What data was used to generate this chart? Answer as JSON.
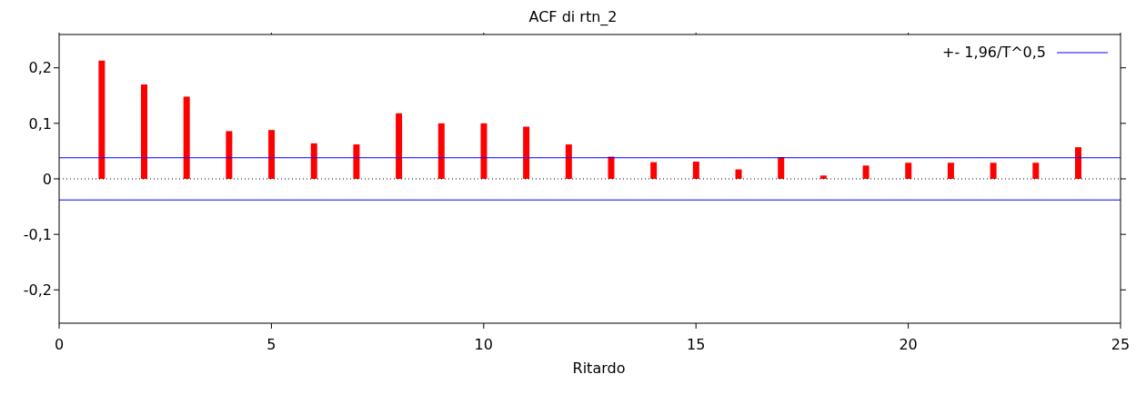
{
  "chart_data": {
    "type": "bar",
    "title": "ACF di rtn_2",
    "xlabel": "Ritardo",
    "x": [
      1,
      2,
      3,
      4,
      5,
      6,
      7,
      8,
      9,
      10,
      11,
      12,
      13,
      14,
      15,
      16,
      17,
      18,
      19,
      20,
      21,
      22,
      23,
      24
    ],
    "values": [
      0.213,
      0.17,
      0.148,
      0.086,
      0.088,
      0.064,
      0.062,
      0.118,
      0.1,
      0.1,
      0.094,
      0.062,
      0.04,
      0.03,
      0.031,
      0.017,
      0.039,
      0.006,
      0.024,
      0.029,
      0.029,
      0.029,
      0.029,
      0.057
    ],
    "color": "#ff0000",
    "xlim": [
      0,
      25
    ],
    "xticks": [
      0,
      5,
      10,
      15,
      20,
      25
    ],
    "ylim": [
      -0.26,
      0.26
    ],
    "yticks": [
      {
        "value": -0.2,
        "label": "-0,2"
      },
      {
        "value": -0.1,
        "label": "-0,1"
      },
      {
        "value": 0,
        "label": "0"
      },
      {
        "value": 0.1,
        "label": "0,1"
      },
      {
        "value": 0.2,
        "label": "0,2"
      }
    ],
    "ref_lines": [
      {
        "axis": "y",
        "value": 0.038,
        "label": "+- 1,96/T^0,5",
        "color": "#0000ff",
        "line_style": "solid"
      },
      {
        "axis": "y",
        "value": -0.038,
        "color": "#0000ff",
        "line_style": "solid"
      },
      {
        "axis": "y",
        "value": 0,
        "color": "#000000",
        "line_style": "dotted"
      }
    ],
    "grid": false,
    "legend": "top right"
  }
}
